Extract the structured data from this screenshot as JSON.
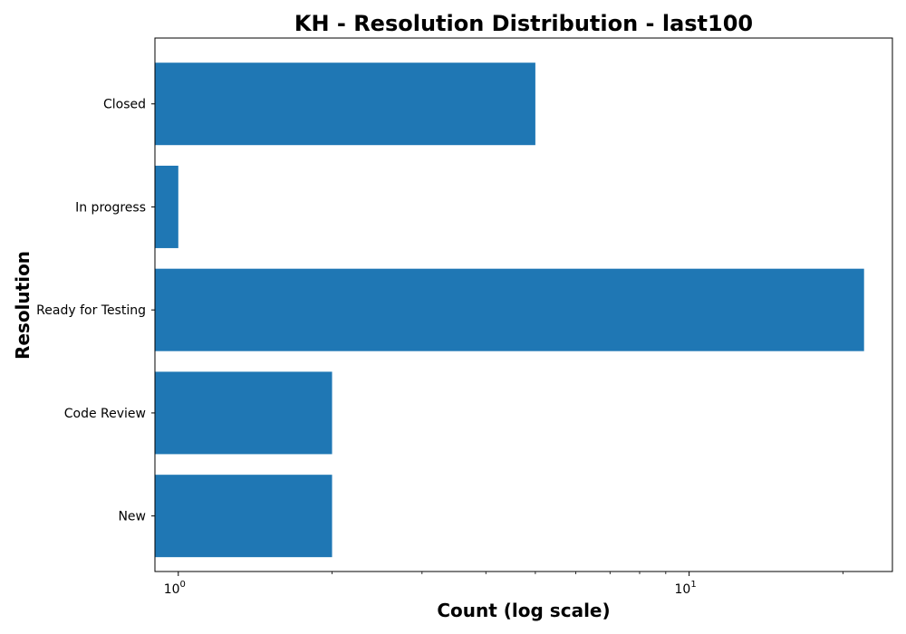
{
  "chart_data": {
    "type": "bar",
    "orientation": "horizontal",
    "title": "KH - Resolution Distribution - last100",
    "xlabel": "Count (log scale)",
    "ylabel": "Resolution",
    "x_scale": "log",
    "xlim": [
      0.9,
      25
    ],
    "x_ticks": [
      {
        "value": 1,
        "base": "10",
        "exp": "0"
      },
      {
        "value": 10,
        "base": "10",
        "exp": "1"
      }
    ],
    "categories": [
      "Closed",
      "In progress",
      "Ready for Testing",
      "Code Review",
      "New"
    ],
    "values": [
      5,
      1,
      22,
      2,
      2
    ],
    "bar_color": "#1f77b4",
    "grid": false,
    "legend": "none"
  }
}
